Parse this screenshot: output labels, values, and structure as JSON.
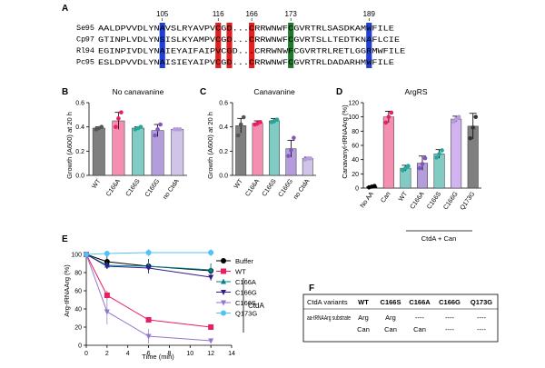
{
  "panels": {
    "A": {
      "label": "A",
      "positions": [
        "105",
        "116",
        "166",
        "173",
        "189"
      ],
      "seq_rows": [
        {
          "species": "Se",
          "start": "95",
          "seq": "AALDPVVDLYNAVSLRYAVPVCGD...CRRWNWFCGVRTRLSASDKAMWFILE"
        },
        {
          "species": "Cp",
          "start": "97",
          "seq": "GTINPLVDLYNSISLKYAMPVCGD...CRRWNWFCGVRTSLLTEDTKNAFLCIE"
        },
        {
          "species": "Rl",
          "start": "94",
          "seq": "EGINPIVDLYNAIEYAIFAIPVCGD...CRRWNWFCGVRTRLRETLGGRMWFILE"
        },
        {
          "species": "Pc",
          "start": "95",
          "seq": "ESLDPVVDLYNAISIEYAIPVCGD...CRRWNWFCGVRTRLDADARHMWFILE"
        }
      ],
      "colors": {
        "blue": "#1f3fd6",
        "red": "#e02020",
        "green": "#1a7a2a"
      }
    },
    "B": {
      "label": "B",
      "title": "No canavanine",
      "ylabel": "Growth (A600) at 20 h"
    },
    "C": {
      "label": "C",
      "title": "Canavanine",
      "ylabel": "Growth (A600) at 20 h"
    },
    "D": {
      "label": "D",
      "title": "ArgRS",
      "ylabel": "Canavanyl-tRNAArg (%)",
      "group_label": "CtdA + Can"
    },
    "E": {
      "label": "E",
      "ylabel": "Arg-tRNAArg (%)",
      "xlabel": "Time (min)",
      "bracket_label": "CtdA"
    },
    "F": {
      "label": "F",
      "header": [
        "CtdA variants",
        "WT",
        "C166S",
        "C166A",
        "C166G",
        "Q173G"
      ],
      "row_label": "aa-tRNAArg substrate",
      "row1": [
        "Arg",
        "Arg",
        "----",
        "----",
        "----"
      ],
      "row2": [
        "Can",
        "Can",
        "Can",
        "----",
        "----"
      ]
    }
  },
  "chart_data": [
    {
      "panel": "B",
      "type": "bar",
      "title": "No canavanine",
      "ylabel": "Growth (A600) at 20 h",
      "categories": [
        "WT",
        "C166A",
        "C166S",
        "C166G",
        "no CtdA"
      ],
      "values": [
        0.39,
        0.45,
        0.39,
        0.37,
        0.38
      ],
      "errors": [
        0.01,
        0.07,
        0.01,
        0.05,
        0.005
      ],
      "points": [
        [
          0.38,
          0.39,
          0.4
        ],
        [
          0.4,
          0.47,
          0.52
        ],
        [
          0.38,
          0.39,
          0.4
        ],
        [
          0.33,
          0.38,
          0.42
        ],
        [
          0.38,
          0.38,
          0.38
        ]
      ],
      "colors": [
        "#7f7f7f",
        "#f48fb1",
        "#80cbc4",
        "#b39ddb",
        "#d1c4e9"
      ],
      "ylim": [
        0,
        0.6
      ],
      "yticks": [
        "0.0",
        "0.2",
        "0.4",
        "0.6"
      ]
    },
    {
      "panel": "C",
      "type": "bar",
      "title": "Canavanine",
      "ylabel": "Growth (A600) at 20 h",
      "categories": [
        "WT",
        "C166A",
        "C166S",
        "C166G",
        "no CtdA"
      ],
      "values": [
        0.41,
        0.43,
        0.45,
        0.22,
        0.14
      ],
      "errors": [
        0.06,
        0.02,
        0.02,
        0.07,
        0.01
      ],
      "points": [
        [
          0.33,
          0.42,
          0.48
        ],
        [
          0.42,
          0.43,
          0.44
        ],
        [
          0.44,
          0.45,
          0.46
        ],
        [
          0.16,
          0.21,
          0.31
        ],
        [
          0.13,
          0.14,
          0.14
        ]
      ],
      "colors": [
        "#7f7f7f",
        "#f48fb1",
        "#80cbc4",
        "#b39ddb",
        "#d1c4e9"
      ],
      "ylim": [
        0,
        0.6
      ],
      "yticks": [
        "0.0",
        "0.2",
        "0.4",
        "0.6"
      ]
    },
    {
      "panel": "D",
      "type": "bar",
      "title": "ArgRS",
      "ylabel": "Canavanyl-tRNAArg (%)",
      "categories": [
        "No AA",
        "Can",
        "WT",
        "C166A",
        "C166S",
        "C166G",
        "Q173G"
      ],
      "values": [
        2,
        100,
        28,
        35,
        48,
        97,
        87
      ],
      "errors": [
        1,
        8,
        4,
        10,
        6,
        4,
        18
      ],
      "points": [
        [
          1,
          2,
          3
        ],
        [
          92,
          100,
          106
        ],
        [
          25,
          28,
          31
        ],
        [
          28,
          34,
          42
        ],
        [
          43,
          48,
          53
        ],
        [
          93,
          97,
          100
        ],
        [
          70,
          85,
          100
        ]
      ],
      "colors": [
        "#000000",
        "#f48fb1",
        "#80cbc4",
        "#b39ddb",
        "#80cbc4",
        "#d1b3f0",
        "#7f7f7f"
      ],
      "ylim": [
        0,
        120
      ],
      "yticks": [
        "0",
        "20",
        "40",
        "60",
        "80",
        "100",
        "120"
      ]
    },
    {
      "panel": "E",
      "type": "line",
      "xlabel": "Time (min)",
      "ylabel": "Arg-tRNAArg (%)",
      "x": [
        0,
        2,
        6,
        12
      ],
      "xlim": [
        0,
        14
      ],
      "ylim": [
        0,
        100
      ],
      "xticks": [
        "0",
        "2",
        "4",
        "6",
        "8",
        "10",
        "12",
        "14"
      ],
      "yticks": [
        "0",
        "20",
        "40",
        "60",
        "80",
        "100"
      ],
      "series": [
        {
          "name": "Buffer",
          "values": [
            100,
            92,
            87,
            82
          ],
          "errors": [
            2,
            6,
            8,
            8
          ],
          "color": "#000000",
          "marker": "circle"
        },
        {
          "name": "WT",
          "values": [
            100,
            55,
            28,
            20
          ],
          "errors": [
            2,
            5,
            3,
            3
          ],
          "color": "#e91e63",
          "marker": "square"
        },
        {
          "name": "C166A",
          "values": [
            100,
            88,
            87,
            83
          ],
          "errors": [
            2,
            4,
            5,
            6
          ],
          "color": "#00838f",
          "marker": "triangle-up"
        },
        {
          "name": "C166G",
          "values": [
            100,
            87,
            85,
            75
          ],
          "errors": [
            2,
            3,
            3,
            4
          ],
          "color": "#311b92",
          "marker": "triangle-down"
        },
        {
          "name": "C166S",
          "values": [
            100,
            37,
            10,
            5
          ],
          "errors": [
            2,
            14,
            8,
            3
          ],
          "color": "#9575cd",
          "marker": "triangle-down"
        },
        {
          "name": "Q173G",
          "values": [
            100,
            101,
            102,
            102
          ],
          "errors": [
            2,
            3,
            4,
            4
          ],
          "color": "#4fc3f7",
          "marker": "circle"
        }
      ]
    }
  ]
}
